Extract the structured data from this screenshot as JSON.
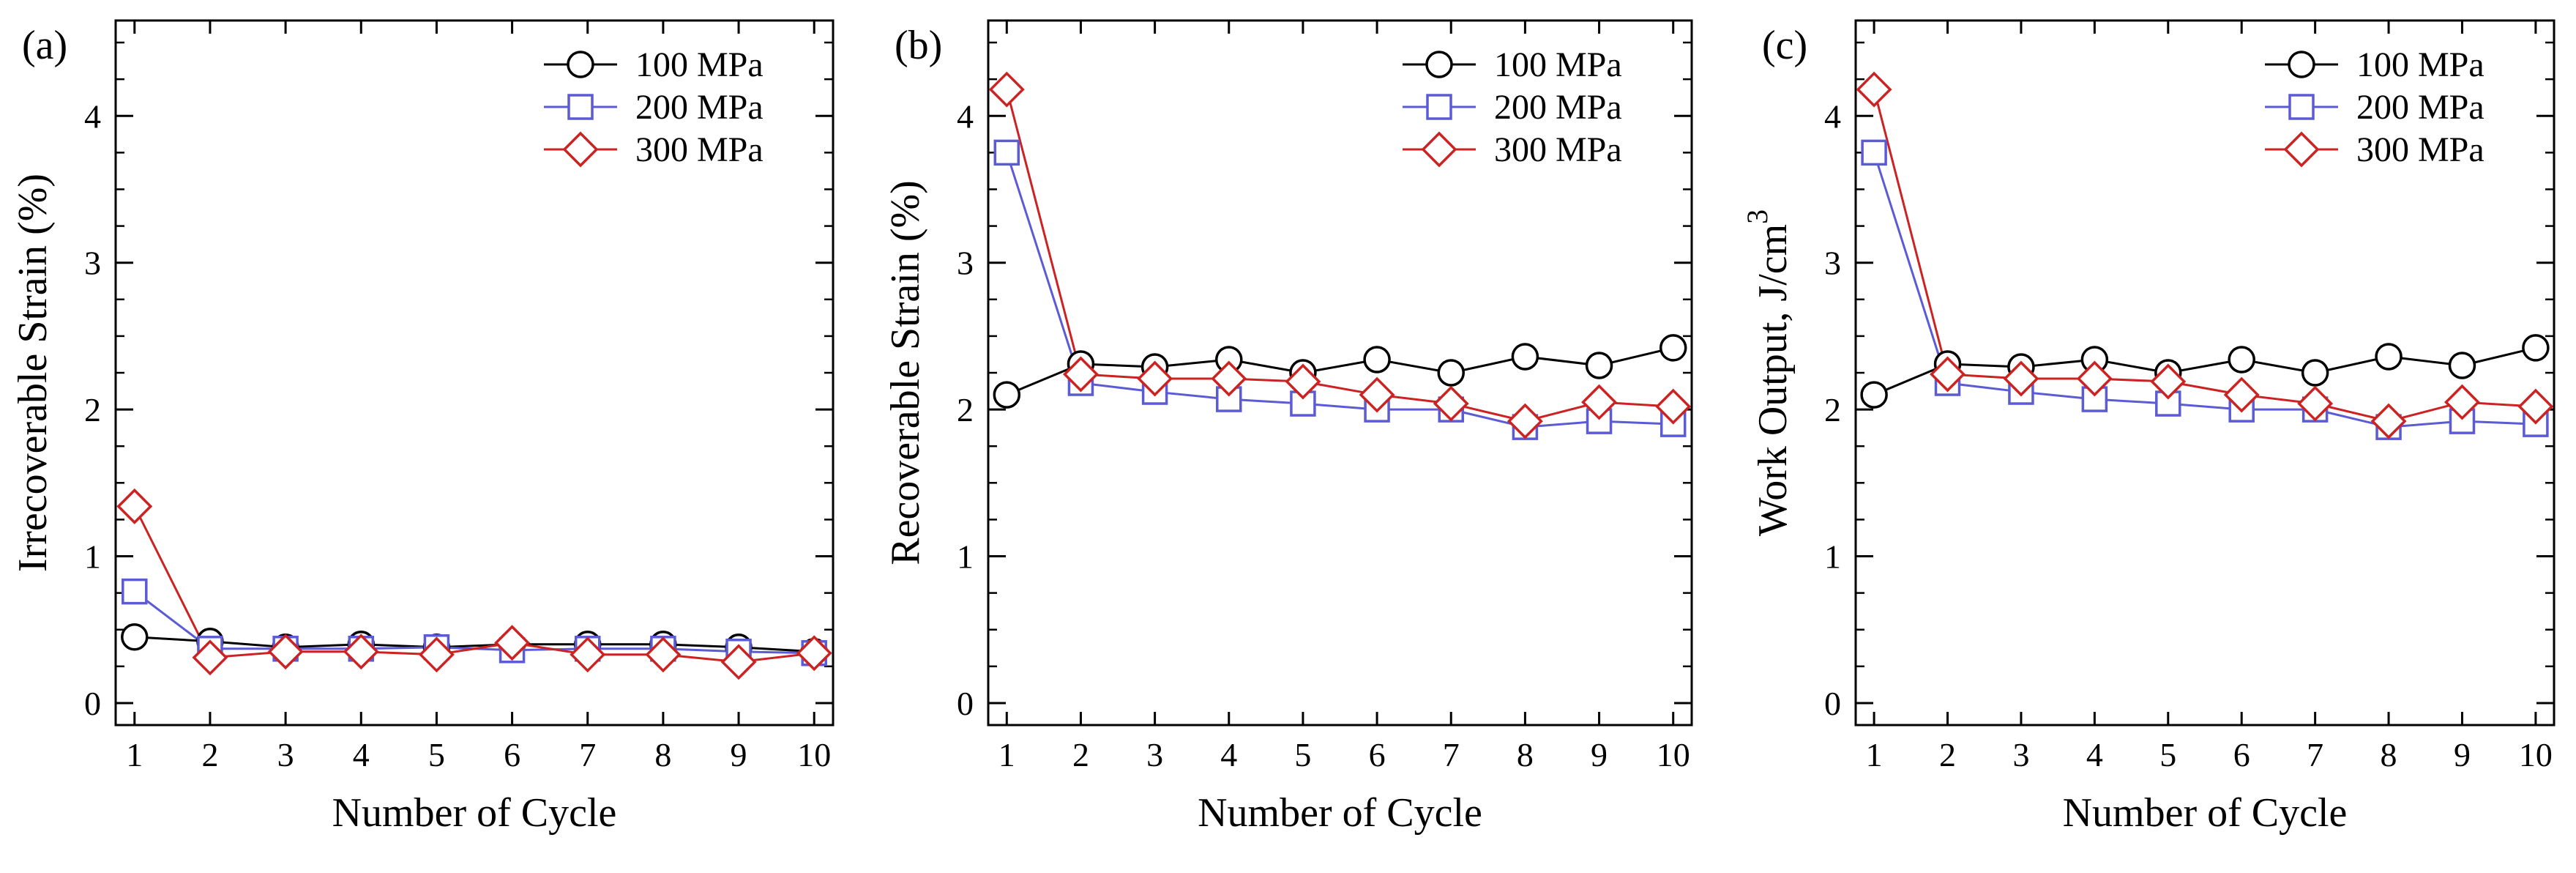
{
  "figure_title": "",
  "colors": {
    "100 MPa": "#000000",
    "200 MPa": "#5b5bd6",
    "300 MPa": "#cc2222"
  },
  "chart_data": [
    {
      "panel_label": "(a)",
      "type": "line",
      "title": "",
      "xlabel": "Number of Cycle",
      "ylabel": "Irrecoverable Strain (%)",
      "ylabel_sup": "",
      "xlim": [
        0.75,
        10.25
      ],
      "ylim": [
        -0.15,
        4.65
      ],
      "x_ticks": [
        1,
        2,
        3,
        4,
        5,
        6,
        7,
        8,
        9,
        10
      ],
      "y_ticks": [
        0,
        1,
        2,
        3,
        4
      ],
      "legend_position": "top-right",
      "x": [
        1,
        2,
        3,
        4,
        5,
        6,
        7,
        8,
        9,
        10
      ],
      "series": [
        {
          "name": "100 MPa",
          "marker": "circle",
          "values": [
            0.45,
            0.42,
            0.38,
            0.4,
            0.38,
            0.4,
            0.4,
            0.4,
            0.38,
            0.35
          ]
        },
        {
          "name": "200 MPa",
          "marker": "square",
          "values": [
            0.76,
            0.37,
            0.37,
            0.37,
            0.38,
            0.36,
            0.37,
            0.37,
            0.35,
            0.34
          ]
        },
        {
          "name": "300 MPa",
          "marker": "diamond",
          "values": [
            1.34,
            0.31,
            0.35,
            0.35,
            0.33,
            0.41,
            0.33,
            0.33,
            0.28,
            0.34
          ]
        }
      ]
    },
    {
      "panel_label": "(b)",
      "type": "line",
      "title": "",
      "xlabel": "Number of Cycle",
      "ylabel": "Recoverable Strain (%)",
      "ylabel_sup": "",
      "xlim": [
        0.75,
        10.25
      ],
      "ylim": [
        -0.15,
        4.65
      ],
      "x_ticks": [
        1,
        2,
        3,
        4,
        5,
        6,
        7,
        8,
        9,
        10
      ],
      "y_ticks": [
        0,
        1,
        2,
        3,
        4
      ],
      "legend_position": "top-right",
      "x": [
        1,
        2,
        3,
        4,
        5,
        6,
        7,
        8,
        9,
        10
      ],
      "series": [
        {
          "name": "100 MPa",
          "marker": "circle",
          "values": [
            2.1,
            2.31,
            2.29,
            2.34,
            2.25,
            2.34,
            2.25,
            2.36,
            2.3,
            2.42
          ]
        },
        {
          "name": "200 MPa",
          "marker": "square",
          "values": [
            3.75,
            2.18,
            2.12,
            2.07,
            2.04,
            2.0,
            2.0,
            1.88,
            1.92,
            1.9
          ]
        },
        {
          "name": "300 MPa",
          "marker": "diamond",
          "values": [
            4.18,
            2.24,
            2.21,
            2.21,
            2.19,
            2.1,
            2.04,
            1.92,
            2.05,
            2.02
          ]
        }
      ]
    },
    {
      "panel_label": "(c)",
      "type": "line",
      "title": "",
      "xlabel": "Number of Cycle",
      "ylabel": "Work Output, J/cm",
      "ylabel_sup": "3",
      "xlim": [
        0.75,
        10.25
      ],
      "ylim": [
        -0.15,
        4.65
      ],
      "x_ticks": [
        1,
        2,
        3,
        4,
        5,
        6,
        7,
        8,
        9,
        10
      ],
      "y_ticks": [
        0,
        1,
        2,
        3,
        4
      ],
      "legend_position": "top-right",
      "x": [
        1,
        2,
        3,
        4,
        5,
        6,
        7,
        8,
        9,
        10
      ],
      "series": [
        {
          "name": "100 MPa",
          "marker": "circle",
          "values": [
            2.1,
            2.31,
            2.29,
            2.34,
            2.25,
            2.34,
            2.25,
            2.36,
            2.3,
            2.42
          ]
        },
        {
          "name": "200 MPa",
          "marker": "square",
          "values": [
            3.75,
            2.18,
            2.12,
            2.07,
            2.04,
            2.0,
            2.0,
            1.88,
            1.92,
            1.9
          ]
        },
        {
          "name": "300 MPa",
          "marker": "diamond",
          "values": [
            4.18,
            2.24,
            2.21,
            2.21,
            2.19,
            2.1,
            2.04,
            1.92,
            2.05,
            2.02
          ]
        }
      ]
    }
  ]
}
